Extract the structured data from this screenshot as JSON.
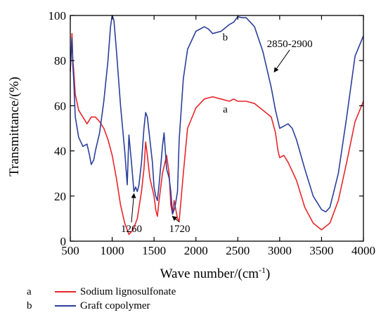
{
  "chart_data": {
    "type": "line",
    "xlabel_main": "Wave number/(cm",
    "xlabel_sup": "-1",
    "xlabel_tail": ")",
    "ylabel": "Transmittance/(%)",
    "xlim": [
      500,
      4000
    ],
    "ylim": [
      0,
      100
    ],
    "xticks": [
      500,
      1000,
      1500,
      2000,
      2500,
      3000,
      3500,
      4000
    ],
    "yticks": [
      0,
      20,
      40,
      60,
      80,
      100
    ],
    "series": [
      {
        "key": "a",
        "name": "Sodium lignosulfonate",
        "color": "#e8262a",
        "x": [
          500,
          520,
          530,
          540,
          560,
          600,
          650,
          700,
          750,
          800,
          850,
          900,
          950,
          1000,
          1050,
          1100,
          1150,
          1200,
          1250,
          1300,
          1350,
          1380,
          1400,
          1420,
          1450,
          1500,
          1520,
          1540,
          1560,
          1600,
          1650,
          1680,
          1700,
          1720,
          1740,
          1760,
          1780,
          1800,
          1850,
          1900,
          2000,
          2100,
          2200,
          2300,
          2400,
          2450,
          2500,
          2600,
          2700,
          2800,
          2900,
          2950,
          2980,
          3000,
          3050,
          3100,
          3200,
          3300,
          3400,
          3500,
          3600,
          3700,
          3800,
          3900,
          4000
        ],
        "y": [
          75,
          92,
          80,
          76,
          65,
          58,
          55,
          52,
          55,
          55,
          53,
          50,
          45,
          38,
          28,
          16,
          8,
          3,
          5,
          10,
          22,
          32,
          44,
          38,
          28,
          20,
          14,
          11,
          18,
          30,
          38,
          30,
          16,
          12,
          18,
          14,
          10,
          9,
          30,
          50,
          59,
          63,
          64,
          63,
          62,
          63,
          62,
          62,
          61,
          58,
          55,
          48,
          40,
          37,
          38,
          35,
          27,
          15,
          8,
          5,
          8,
          18,
          35,
          53,
          62
        ]
      },
      {
        "key": "b",
        "name": "Graft copolymer",
        "color": "#2b3f9c",
        "x": [
          500,
          520,
          530,
          540,
          560,
          600,
          650,
          700,
          730,
          750,
          780,
          800,
          850,
          900,
          950,
          980,
          1000,
          1020,
          1050,
          1100,
          1150,
          1180,
          1200,
          1230,
          1260,
          1280,
          1300,
          1320,
          1350,
          1380,
          1400,
          1420,
          1450,
          1480,
          1500,
          1520,
          1540,
          1560,
          1600,
          1620,
          1650,
          1680,
          1700,
          1720,
          1750,
          1780,
          1800,
          1850,
          1900,
          2000,
          2100,
          2150,
          2200,
          2300,
          2400,
          2450,
          2500,
          2550,
          2600,
          2650,
          2700,
          2800,
          2900,
          2950,
          3000,
          3050,
          3100,
          3150,
          3200,
          3300,
          3400,
          3500,
          3550,
          3600,
          3700,
          3800,
          3900,
          4000
        ],
        "y": [
          76,
          90,
          78,
          72,
          55,
          46,
          42,
          43,
          38,
          34,
          36,
          40,
          48,
          62,
          80,
          95,
          100,
          98,
          85,
          60,
          40,
          25,
          47,
          35,
          22,
          24,
          22,
          25,
          35,
          50,
          57,
          55,
          45,
          35,
          24,
          20,
          18,
          25,
          42,
          48,
          32,
          28,
          22,
          12,
          15,
          22,
          45,
          72,
          85,
          93,
          95,
          94,
          92,
          93,
          96,
          97,
          99.5,
          99,
          99,
          97,
          95,
          84,
          68,
          58,
          50,
          51,
          52,
          50,
          45,
          32,
          20,
          14,
          13,
          15,
          30,
          55,
          82,
          91
        ]
      }
    ],
    "curve_labels": [
      {
        "text": "b",
        "x": 2350,
        "y": 89
      },
      {
        "text": "a",
        "x": 2350,
        "y": 57
      }
    ],
    "annotations": [
      {
        "text": "2850-2900",
        "tx": 3120,
        "ty": 86,
        "ax": 2935,
        "ay": 75
      },
      {
        "text": "1260",
        "tx": 1230,
        "ty": 4,
        "ax": 1260,
        "ay": 21
      },
      {
        "text": "1720",
        "tx": 1805,
        "ty": 4,
        "ax": 1720,
        "ay": 11
      }
    ],
    "grid": false,
    "legend_position": "bottom-left"
  }
}
